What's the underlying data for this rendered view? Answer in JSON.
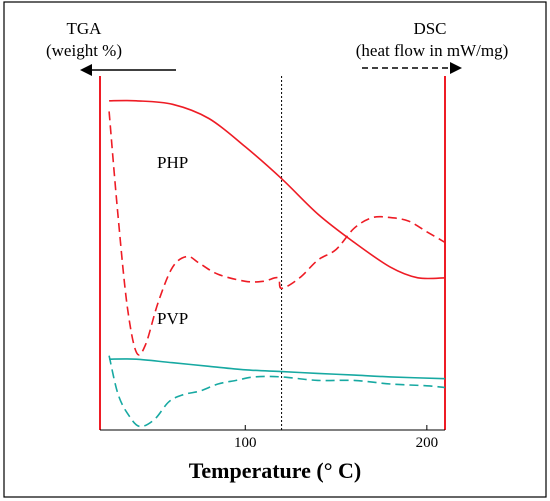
{
  "chart_data": {
    "type": "line",
    "left_axis": {
      "title": "TGA",
      "subtitle": "(weight %)"
    },
    "right_axis": {
      "title": "DSC",
      "subtitle": "(heat flow in mW/mg)"
    },
    "xlabel": "Temperature (° C)",
    "xlim": [
      20,
      210
    ],
    "x_ticks": [
      100,
      200
    ],
    "marker_x": 120,
    "series": [
      {
        "name": "PHP",
        "curve": "TGA",
        "style": "solid",
        "color": "#ee1c25",
        "points": [
          [
            25,
            0.93
          ],
          [
            40,
            0.93
          ],
          [
            60,
            0.92
          ],
          [
            80,
            0.88
          ],
          [
            100,
            0.8
          ],
          [
            120,
            0.71
          ],
          [
            140,
            0.61
          ],
          [
            160,
            0.53
          ],
          [
            180,
            0.46
          ],
          [
            195,
            0.43
          ],
          [
            210,
            0.43
          ]
        ]
      },
      {
        "name": "PHP",
        "curve": "DSC",
        "style": "dashed",
        "color": "#ee1c25",
        "points": [
          [
            25,
            0.9
          ],
          [
            30,
            0.6
          ],
          [
            35,
            0.35
          ],
          [
            40,
            0.22
          ],
          [
            45,
            0.24
          ],
          [
            52,
            0.36
          ],
          [
            60,
            0.46
          ],
          [
            68,
            0.49
          ],
          [
            75,
            0.47
          ],
          [
            85,
            0.44
          ],
          [
            100,
            0.42
          ],
          [
            110,
            0.42
          ],
          [
            118,
            0.43
          ],
          [
            120,
            0.4
          ],
          [
            130,
            0.43
          ],
          [
            140,
            0.48
          ],
          [
            150,
            0.51
          ],
          [
            160,
            0.57
          ],
          [
            170,
            0.6
          ],
          [
            180,
            0.6
          ],
          [
            190,
            0.59
          ],
          [
            200,
            0.56
          ],
          [
            210,
            0.53
          ]
        ]
      },
      {
        "name": "PVP",
        "curve": "TGA",
        "style": "solid",
        "color": "#17a9a2",
        "points": [
          [
            25,
            0.2
          ],
          [
            40,
            0.2
          ],
          [
            60,
            0.19
          ],
          [
            80,
            0.18
          ],
          [
            100,
            0.17
          ],
          [
            120,
            0.165
          ],
          [
            140,
            0.16
          ],
          [
            160,
            0.155
          ],
          [
            180,
            0.15
          ],
          [
            210,
            0.145
          ]
        ]
      },
      {
        "name": "PVP",
        "curve": "DSC",
        "style": "dashed",
        "color": "#17a9a2",
        "points": [
          [
            25,
            0.21
          ],
          [
            30,
            0.1
          ],
          [
            36,
            0.04
          ],
          [
            42,
            0.01
          ],
          [
            50,
            0.03
          ],
          [
            58,
            0.08
          ],
          [
            66,
            0.1
          ],
          [
            75,
            0.11
          ],
          [
            85,
            0.13
          ],
          [
            95,
            0.14
          ],
          [
            105,
            0.15
          ],
          [
            120,
            0.15
          ],
          [
            140,
            0.14
          ],
          [
            160,
            0.14
          ],
          [
            180,
            0.13
          ],
          [
            200,
            0.125
          ],
          [
            210,
            0.12
          ]
        ]
      }
    ],
    "annotations": [
      {
        "text": "PHP",
        "x": 60,
        "color": "#ee1c25"
      },
      {
        "text": "PVP",
        "x": 60,
        "color": "#17a9a2"
      }
    ]
  }
}
